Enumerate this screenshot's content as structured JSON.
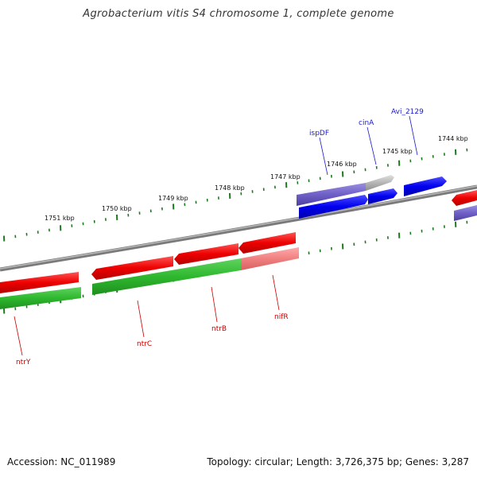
{
  "title": "Agrobacterium vitis S4 chromosome 1, complete genome",
  "accession_label": "Accession: NC_011989",
  "topology_label": "Topology: circular; Length: 3,726,375 bp; Genes: 3,287",
  "scale_labels": [
    "1751 kbp",
    "1750 kbp",
    "1749 kbp",
    "1748 kbp",
    "1747 kbp",
    "1746 kbp",
    "1745 kbp",
    "1744 kbp"
  ],
  "genes_upper": [
    "ispDF",
    "cinA",
    "Avi_2129"
  ],
  "genes_lower": [
    "ntrY",
    "ntrC",
    "ntrB",
    "nifR"
  ],
  "colors": {
    "backbone": "#8a8a8a",
    "tick": "#1e7a1e",
    "forward_gene": "#1a1ae6",
    "forward_pale": "#7766cc",
    "reverse_gene": "#e61a1a",
    "reverse_pale": "#f08a8a",
    "rna_green": "#2eb82e",
    "gray_gene": "#aaaaaa",
    "label_blue": "#1a1acc",
    "label_red": "#cc0000"
  }
}
